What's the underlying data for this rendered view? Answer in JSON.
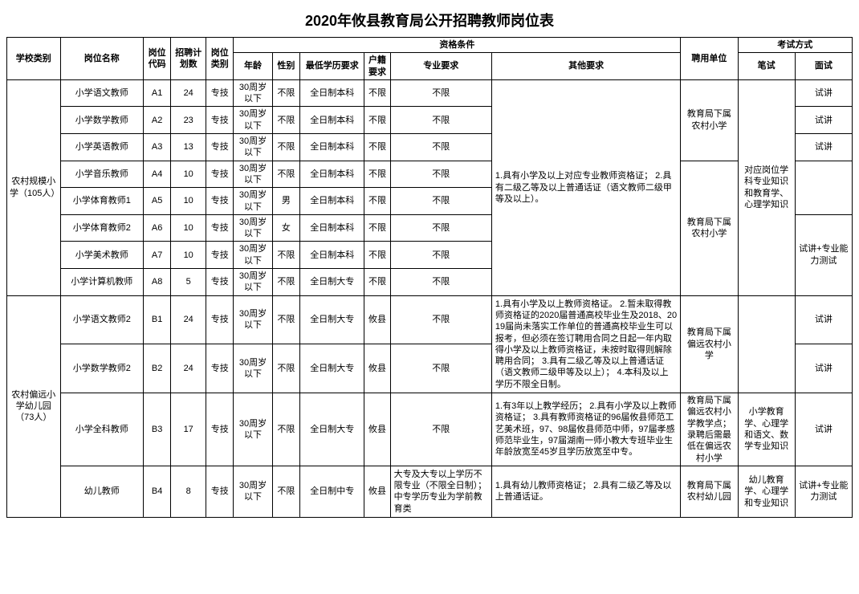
{
  "title": "2020年攸县教育局公开招聘教师岗位表",
  "headers": {
    "schoolType": "学校类别",
    "positionName": "岗位名称",
    "positionCode": "岗位代码",
    "planCount": "招聘计划数",
    "positionType": "岗位类别",
    "qualGroup": "资格条件",
    "age": "年龄",
    "gender": "性别",
    "minEdu": "最低学历要求",
    "huji": "户籍要求",
    "major": "专业要求",
    "other": "其他要求",
    "employer": "聘用单位",
    "examGroup": "考试方式",
    "written": "笔试",
    "interview": "面试"
  },
  "groupA": {
    "school": "农村规模小学（105人）",
    "other": "1.具有小学及以上对应专业教师资格证；\n2.具有二级乙等及以上普通话证（语文教师二级甲等及以上）。",
    "employer1": "教育局下属农村小学",
    "employer2": "教育局下属农村小学",
    "written": "对应岗位学科专业知识和教育学、心理学知识",
    "rows": [
      {
        "name": "小学语文教师",
        "code": "A1",
        "plan": "24",
        "ptype": "专技",
        "age": "30周岁以下",
        "gender": "不限",
        "edu": "全日制本科",
        "huji": "不限",
        "major": "不限",
        "interview": "试讲"
      },
      {
        "name": "小学数学教师",
        "code": "A2",
        "plan": "23",
        "ptype": "专技",
        "age": "30周岁以下",
        "gender": "不限",
        "edu": "全日制本科",
        "huji": "不限",
        "major": "不限",
        "interview": "试讲"
      },
      {
        "name": "小学英语教师",
        "code": "A3",
        "plan": "13",
        "ptype": "专技",
        "age": "30周岁以下",
        "gender": "不限",
        "edu": "全日制本科",
        "huji": "不限",
        "major": "不限",
        "interview": "试讲"
      },
      {
        "name": "小学音乐教师",
        "code": "A4",
        "plan": "10",
        "ptype": "专技",
        "age": "30周岁以下",
        "gender": "不限",
        "edu": "全日制本科",
        "huji": "不限",
        "major": "不限",
        "interview": ""
      },
      {
        "name": "小学体育教师1",
        "code": "A5",
        "plan": "10",
        "ptype": "专技",
        "age": "30周岁以下",
        "gender": "男",
        "edu": "全日制本科",
        "huji": "不限",
        "major": "不限",
        "interview": ""
      },
      {
        "name": "小学体育教师2",
        "code": "A6",
        "plan": "10",
        "ptype": "专技",
        "age": "30周岁以下",
        "gender": "女",
        "edu": "全日制本科",
        "huji": "不限",
        "major": "不限",
        "interview": "试讲+专业能力测试"
      },
      {
        "name": "小学美术教师",
        "code": "A7",
        "plan": "10",
        "ptype": "专技",
        "age": "30周岁以下",
        "gender": "不限",
        "edu": "全日制本科",
        "huji": "不限",
        "major": "不限",
        "interview": ""
      },
      {
        "name": "小学计算机教师",
        "code": "A8",
        "plan": "5",
        "ptype": "专技",
        "age": "30周岁以下",
        "gender": "不限",
        "edu": "全日制大专",
        "huji": "不限",
        "major": "不限",
        "interview": ""
      }
    ]
  },
  "groupB": {
    "school": "农村偏远小学幼儿园（73人）",
    "rows12": [
      {
        "name": "小学语文教师2",
        "code": "B1",
        "plan": "24",
        "ptype": "专技",
        "age": "30周岁以下",
        "gender": "不限",
        "edu": "全日制大专",
        "huji": "攸县",
        "major": "不限",
        "interview": "试讲"
      },
      {
        "name": "小学数学教师2",
        "code": "B2",
        "plan": "24",
        "ptype": "专技",
        "age": "30周岁以下",
        "gender": "不限",
        "edu": "全日制大专",
        "huji": "攸县",
        "major": "不限",
        "interview": "试讲"
      }
    ],
    "other12": "1.具有小学及以上教师资格证。\n2.暂未取得教师资格证的2020届普通高校毕业生及2018、2019届尚未落实工作单位的普通高校毕业生可以报考，但必须在签订聘用合同之日起一年内取得小学及以上教师资格证，未按时取得则解除聘用合同；\n3.具有二级乙等及以上普通话证（语文教师二级甲等及以上）；\n4.本科及以上学历不限全日制。",
    "employer12": "教育局下属偏远农村小学",
    "row3": {
      "name": "小学全科教师",
      "code": "B3",
      "plan": "17",
      "ptype": "专技",
      "age": "30周岁以下",
      "gender": "不限",
      "edu": "全日制大专",
      "huji": "攸县",
      "major": "不限",
      "other": "1.有3年以上教学经历；\n2.具有小学及以上教师资格证；\n3.具有教师资格证的96届攸县师范工艺美术班，97、98届攸县师范中师，97届孝感师范毕业生，97届湖南一师小教大专班毕业生年龄放宽至45岁且学历放宽至中专。",
      "employer": "教育局下属偏远农村小学教学点；录聘后需最低在偏远农村小学",
      "written": "小学教育学、心理学和语文、数学专业知识",
      "interview": "试讲"
    },
    "row4": {
      "name": "幼儿教师",
      "code": "B4",
      "plan": "8",
      "ptype": "专技",
      "age": "30周岁以下",
      "gender": "不限",
      "edu": "全日制中专",
      "huji": "攸县",
      "major": "大专及大专以上学历不限专业（不限全日制）；中专学历专业为学前教育类",
      "other": "1.具有幼儿教师资格证；\n2.具有二级乙等及以上普通话证。",
      "employer": "教育局下属农村幼儿园",
      "written": "幼儿教育学、心理学和专业知识",
      "interview": "试讲+专业能力测试"
    }
  }
}
